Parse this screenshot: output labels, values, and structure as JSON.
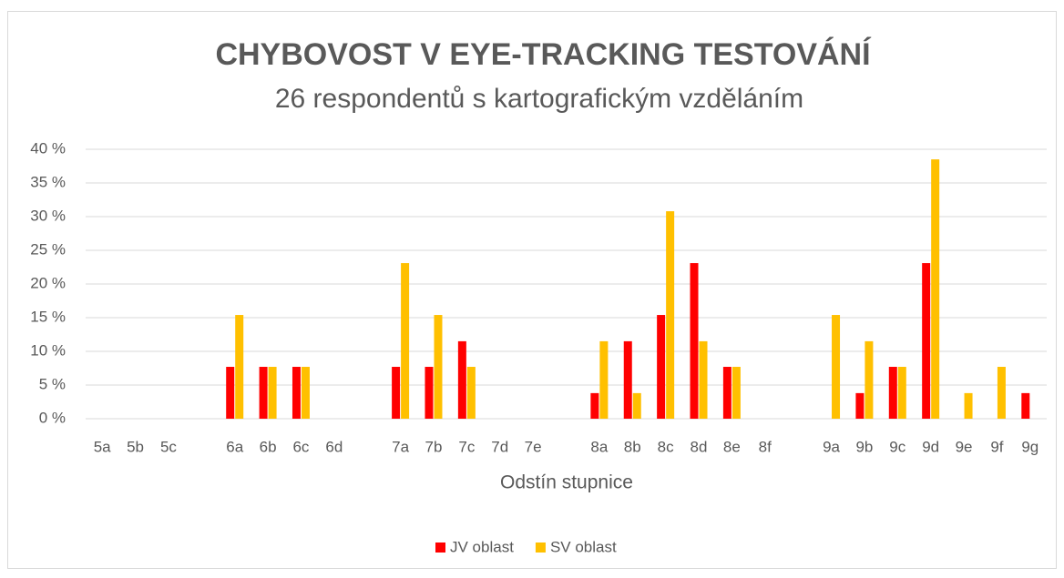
{
  "chart_data": {
    "type": "bar",
    "title": "CHYBOVOST V EYE-TRACKING TESTOVÁNÍ",
    "subtitle": "26 respondentů s kartografickým vzděláním",
    "xlabel": "Odstín stupnice",
    "categories": [
      "5a",
      "5b",
      "5c",
      null,
      "6a",
      "6b",
      "6c",
      "6d",
      null,
      "7a",
      "7b",
      "7c",
      "7d",
      "7e",
      null,
      "8a",
      "8b",
      "8c",
      "8d",
      "8e",
      "8f",
      null,
      "9a",
      "9b",
      "9c",
      "9d",
      "9e",
      "9f",
      "9g"
    ],
    "series": [
      {
        "name": "JV oblast",
        "color": "#ff0000",
        "values": [
          0,
          0,
          0,
          null,
          7.7,
          7.7,
          7.7,
          0,
          null,
          7.7,
          7.7,
          11.5,
          0,
          0,
          null,
          3.8,
          11.5,
          15.4,
          23.1,
          7.7,
          0,
          null,
          0,
          3.8,
          7.7,
          23.1,
          0,
          0,
          3.8
        ]
      },
      {
        "name": "SV oblast",
        "color": "#ffc000",
        "values": [
          0,
          0,
          0,
          null,
          15.4,
          7.7,
          7.7,
          0,
          null,
          23.1,
          15.4,
          7.7,
          0,
          0,
          null,
          11.5,
          3.8,
          30.8,
          11.5,
          7.7,
          0,
          null,
          15.4,
          11.5,
          7.7,
          38.5,
          3.8,
          7.7,
          0
        ]
      }
    ],
    "ylim": [
      0,
      40
    ],
    "yticks": [
      {
        "value": 0,
        "label": "0 %"
      },
      {
        "value": 5,
        "label": "5 %"
      },
      {
        "value": 10,
        "label": "10 %"
      },
      {
        "value": 15,
        "label": "15 %"
      },
      {
        "value": 20,
        "label": "20 %"
      },
      {
        "value": 25,
        "label": "25 %"
      },
      {
        "value": 30,
        "label": "30 %"
      },
      {
        "value": 35,
        "label": "35 %"
      },
      {
        "value": 40,
        "label": "40 %"
      }
    ],
    "grid": true,
    "legend": "bottom"
  }
}
